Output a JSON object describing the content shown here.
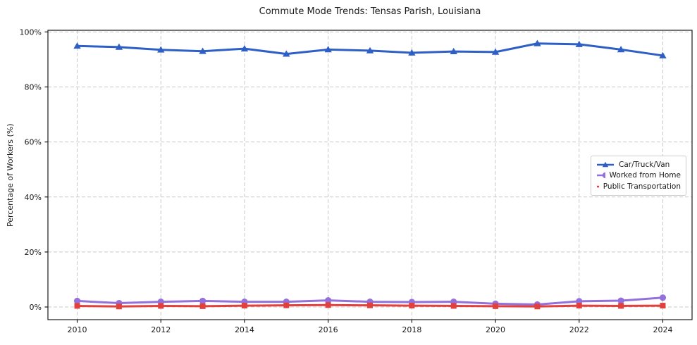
{
  "chart_data": {
    "type": "line",
    "title": "Commute Mode Trends: Tensas Parish, Louisiana",
    "xlabel": "",
    "ylabel": "Percentage of Workers (%)",
    "x": [
      2010,
      2011,
      2012,
      2013,
      2014,
      2015,
      2016,
      2017,
      2018,
      2019,
      2020,
      2021,
      2022,
      2023,
      2024
    ],
    "series": [
      {
        "name": "Car/Truck/Van",
        "marker": "triangle",
        "color": "#2e5fc7",
        "values": [
          94.9,
          94.5,
          93.5,
          93.0,
          93.9,
          92.0,
          93.6,
          93.2,
          92.4,
          92.9,
          92.7,
          95.8,
          95.5,
          93.6,
          91.4
        ]
      },
      {
        "name": "Worked from Home",
        "marker": "circle",
        "color": "#9370db",
        "values": [
          2.2,
          1.4,
          1.9,
          2.2,
          1.9,
          1.9,
          2.4,
          1.9,
          1.8,
          1.9,
          1.2,
          0.9,
          2.1,
          2.3,
          3.4
        ]
      },
      {
        "name": "Public Transportation",
        "marker": "square",
        "color": "#e2403d",
        "values": [
          0.4,
          0.2,
          0.4,
          0.3,
          0.5,
          0.6,
          0.7,
          0.6,
          0.5,
          0.4,
          0.3,
          0.2,
          0.5,
          0.4,
          0.5
        ]
      }
    ],
    "xlim": [
      2009.3,
      2024.7
    ],
    "ylim": [
      -4.6,
      100.6
    ],
    "x_ticks": [
      2010,
      2012,
      2014,
      2016,
      2018,
      2020,
      2022,
      2024
    ],
    "x_tick_labels": [
      "2010",
      "2012",
      "2014",
      "2016",
      "2018",
      "2020",
      "2022",
      "2024"
    ],
    "y_ticks": [
      0,
      20,
      40,
      60,
      80,
      100
    ],
    "y_tick_labels": [
      "0%",
      "20%",
      "40%",
      "60%",
      "80%",
      "100%"
    ],
    "grid": true,
    "grid_style": "dashed",
    "legend_position": "center right",
    "colors": {
      "grid": "#c9c9c9",
      "spine": "#1a1a1a",
      "text": "#1a1a1a",
      "background": "#ffffff",
      "legend_border": "#cccccc"
    }
  }
}
